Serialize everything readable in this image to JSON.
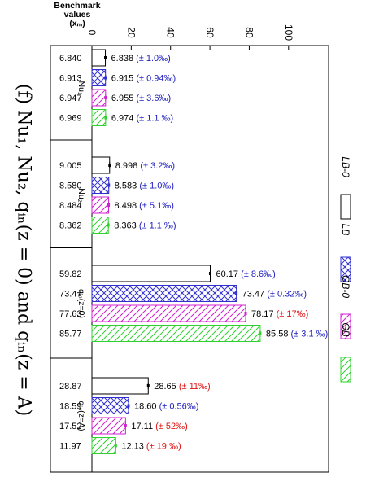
{
  "figure": {
    "caption": "(f) Nu₁, Nu₂, qᵢₙ(z = 0) and qᵢₙ(z = A)",
    "benchmark_header_line1": "Benchmark",
    "benchmark_header_line2": "values",
    "benchmark_header_line3": "(xₘ)"
  },
  "chart_data": {
    "type": "bar",
    "orientation": "horizontal (figure rotated 90°)",
    "value_axis": {
      "ticks": [
        "0",
        "20",
        "40",
        "60",
        "80",
        "100"
      ],
      "range": [
        0,
        106
      ]
    },
    "groups": [
      {
        "label": "Nu₁",
        "benchmarks": [
          "6.840",
          "6.913",
          "6.947",
          "6.969"
        ],
        "values": [
          6.838,
          6.915,
          6.955,
          6.974
        ],
        "annotations": [
          "6.838",
          "6.915",
          "6.955",
          "6.974"
        ],
        "deviations": [
          "(± 1.0‰)",
          "(± 0.94‰)",
          "(± 3.6‰)",
          "(± 1.1 ‰)"
        ]
      },
      {
        "label": "Nu₂",
        "benchmarks": [
          "9.005",
          "8.580",
          "8.484",
          "8.362"
        ],
        "values": [
          8.998,
          8.583,
          8.498,
          8.363
        ],
        "annotations": [
          "8.998",
          "8.583",
          "8.498",
          "8.363"
        ],
        "deviations": [
          "(± 3.2‰)",
          "(± 1.0‰)",
          "(± 5.1‰)",
          "(± 1.1 ‰)"
        ]
      },
      {
        "label": "qᵢₙ(z=0)",
        "benchmarks": [
          "59.82",
          "73.47",
          "77.63",
          "85.77"
        ],
        "values": [
          60.17,
          73.47,
          78.17,
          85.58
        ],
        "annotations": [
          "60.17",
          "73.47",
          "78.17",
          "85.58"
        ],
        "deviations": [
          "(± 8.6‰)",
          "(± 0.32‰)",
          "(± 17‰)",
          "(± 3.1 ‰)"
        ]
      },
      {
        "label": "qᵢₙ(z=A)",
        "benchmarks": [
          "28.87",
          "18.59",
          "17.52",
          "11.97"
        ],
        "values": [
          28.65,
          18.6,
          17.11,
          12.13
        ],
        "annotations": [
          "28.65",
          "18.60",
          "17.11",
          "12.13"
        ],
        "deviations": [
          "(± 11‰)",
          "(± 0.56‰)",
          "(± 52‰)",
          "(± 19 ‰)"
        ]
      }
    ],
    "series": [
      {
        "name": "LB-0",
        "color": "#000000",
        "pattern": "none",
        "dev_color": "#e01010",
        "dev_colored_groups": [
          3
        ]
      },
      {
        "name": "LB",
        "color": "#3030d0",
        "pattern": "crosshatch",
        "dev_color": "#2020c0",
        "dev_colored_groups": []
      },
      {
        "name": "GB-0",
        "color": "#d020d0",
        "pattern": "diagonal",
        "dev_color": "#e01010",
        "dev_colored_groups": [
          2,
          3
        ]
      },
      {
        "name": "GB",
        "color": "#30d030",
        "pattern": "diagonal",
        "dev_color": "#e01010",
        "dev_colored_groups": [
          3
        ]
      }
    ],
    "default_dev_color": "#2020c0",
    "legend_position": "right"
  }
}
